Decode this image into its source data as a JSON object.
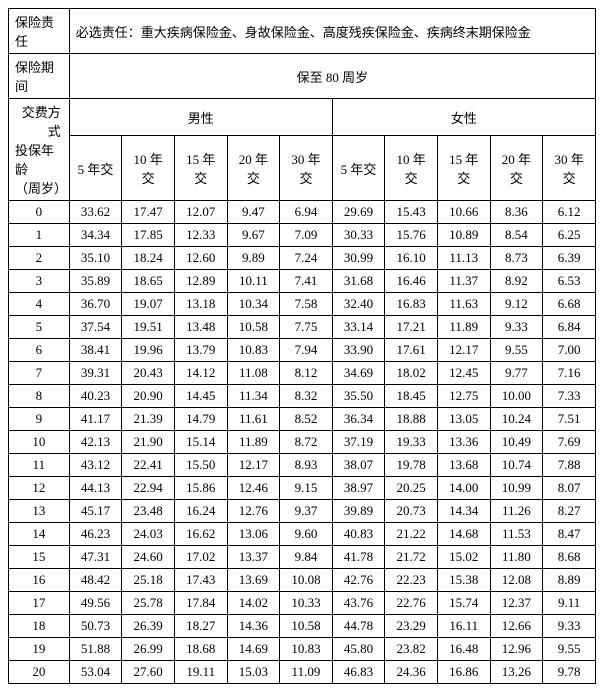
{
  "header": {
    "liability_label": "保险责任",
    "liability_value": "必选责任：重大疾病保险金、身故保险金、高度残疾保险金、疾病终末期保险金",
    "period_label": "保险期间",
    "period_value": "保至 80 周岁",
    "payment_method_label": "交费方式",
    "age_label_line1": "投保年龄",
    "age_label_line2": "（周岁）",
    "gender_male": "男性",
    "gender_female": "女性",
    "payment_terms": [
      "5 年交",
      "10 年\n交",
      "15 年\n交",
      "20 年\n交",
      "30 年\n交",
      "5 年交",
      "10 年\n交",
      "15 年\n交",
      "20 年\n交",
      "30 年\n交"
    ]
  },
  "table": {
    "columns": [
      "投保年龄（周岁）",
      "男性5年交",
      "男性10年交",
      "男性15年交",
      "男性20年交",
      "男性30年交",
      "女性5年交",
      "女性10年交",
      "女性15年交",
      "女性20年交",
      "女性30年交"
    ],
    "ages": [
      0,
      1,
      2,
      3,
      4,
      5,
      6,
      7,
      8,
      9,
      10,
      11,
      12,
      13,
      14,
      15,
      16,
      17,
      18,
      19,
      20
    ],
    "rows": [
      [
        "33.62",
        "17.47",
        "12.07",
        "9.47",
        "6.94",
        "29.69",
        "15.43",
        "10.66",
        "8.36",
        "6.12"
      ],
      [
        "34.34",
        "17.85",
        "12.33",
        "9.67",
        "7.09",
        "30.33",
        "15.76",
        "10.89",
        "8.54",
        "6.25"
      ],
      [
        "35.10",
        "18.24",
        "12.60",
        "9.89",
        "7.24",
        "30.99",
        "16.10",
        "11.13",
        "8.73",
        "6.39"
      ],
      [
        "35.89",
        "18.65",
        "12.89",
        "10.11",
        "7.41",
        "31.68",
        "16.46",
        "11.37",
        "8.92",
        "6.53"
      ],
      [
        "36.70",
        "19.07",
        "13.18",
        "10.34",
        "7.58",
        "32.40",
        "16.83",
        "11.63",
        "9.12",
        "6.68"
      ],
      [
        "37.54",
        "19.51",
        "13.48",
        "10.58",
        "7.75",
        "33.14",
        "17.21",
        "11.89",
        "9.33",
        "6.84"
      ],
      [
        "38.41",
        "19.96",
        "13.79",
        "10.83",
        "7.94",
        "33.90",
        "17.61",
        "12.17",
        "9.55",
        "7.00"
      ],
      [
        "39.31",
        "20.43",
        "14.12",
        "11.08",
        "8.12",
        "34.69",
        "18.02",
        "12.45",
        "9.77",
        "7.16"
      ],
      [
        "40.23",
        "20.90",
        "14.45",
        "11.34",
        "8.32",
        "35.50",
        "18.45",
        "12.75",
        "10.00",
        "7.33"
      ],
      [
        "41.17",
        "21.39",
        "14.79",
        "11.61",
        "8.52",
        "36.34",
        "18.88",
        "13.05",
        "10.24",
        "7.51"
      ],
      [
        "42.13",
        "21.90",
        "15.14",
        "11.89",
        "8.72",
        "37.19",
        "19.33",
        "13.36",
        "10.49",
        "7.69"
      ],
      [
        "43.12",
        "22.41",
        "15.50",
        "12.17",
        "8.93",
        "38.07",
        "19.78",
        "13.68",
        "10.74",
        "7.88"
      ],
      [
        "44.13",
        "22.94",
        "15.86",
        "12.46",
        "9.15",
        "38.97",
        "20.25",
        "14.00",
        "10.99",
        "8.07"
      ],
      [
        "45.17",
        "23.48",
        "16.24",
        "12.76",
        "9.37",
        "39.89",
        "20.73",
        "14.34",
        "11.26",
        "8.27"
      ],
      [
        "46.23",
        "24.03",
        "16.62",
        "13.06",
        "9.60",
        "40.83",
        "21.22",
        "14.68",
        "11.53",
        "8.47"
      ],
      [
        "47.31",
        "24.60",
        "17.02",
        "13.37",
        "9.84",
        "41.78",
        "21.72",
        "15.02",
        "11.80",
        "8.68"
      ],
      [
        "48.42",
        "25.18",
        "17.43",
        "13.69",
        "10.08",
        "42.76",
        "22.23",
        "15.38",
        "12.08",
        "8.89"
      ],
      [
        "49.56",
        "25.78",
        "17.84",
        "14.02",
        "10.33",
        "43.76",
        "22.76",
        "15.74",
        "12.37",
        "9.11"
      ],
      [
        "50.73",
        "26.39",
        "18.27",
        "14.36",
        "10.58",
        "44.78",
        "23.29",
        "16.11",
        "12.66",
        "9.33"
      ],
      [
        "51.88",
        "26.99",
        "18.68",
        "14.69",
        "10.83",
        "45.80",
        "23.82",
        "16.48",
        "12.96",
        "9.55"
      ],
      [
        "53.04",
        "27.60",
        "19.11",
        "15.03",
        "11.09",
        "46.83",
        "24.36",
        "16.86",
        "13.26",
        "9.78"
      ]
    ],
    "font_size": 13,
    "border_color": "#000000",
    "background_color": "#ffffff",
    "text_color": "#000000"
  }
}
